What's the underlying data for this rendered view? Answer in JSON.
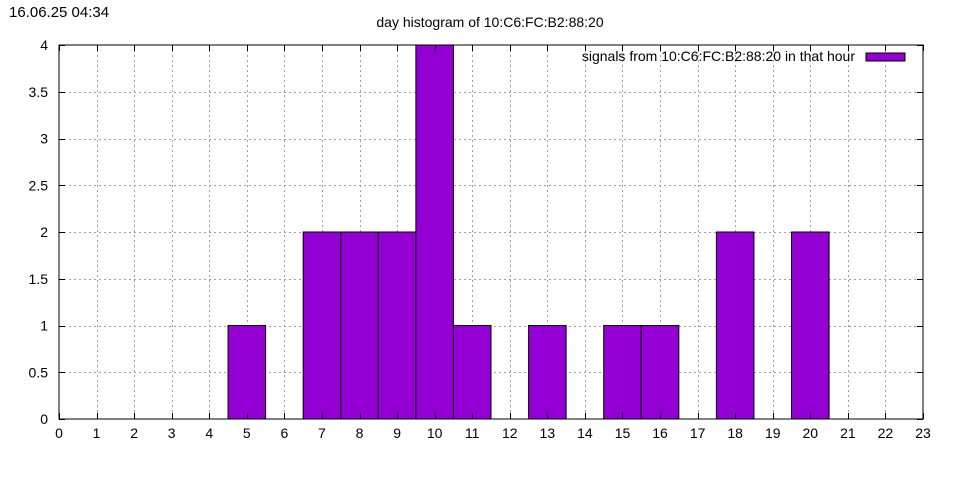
{
  "timestamp": "16.06.25 04:34",
  "chart_data": {
    "type": "bar",
    "title": "day histogram of 10:C6:FC:B2:88:20",
    "xlabel": "",
    "ylabel": "",
    "xlim": [
      0,
      23
    ],
    "ylim": [
      0,
      4
    ],
    "x_ticks": [
      "0",
      "1",
      "2",
      "3",
      "4",
      "5",
      "6",
      "7",
      "8",
      "9",
      "10",
      "11",
      "12",
      "13",
      "14",
      "15",
      "16",
      "17",
      "18",
      "19",
      "20",
      "21",
      "22",
      "23"
    ],
    "y_ticks": [
      "0",
      "0.5",
      "1",
      "1.5",
      "2",
      "2.5",
      "3",
      "3.5",
      "4"
    ],
    "grid": true,
    "legend_position": "top-right",
    "series": [
      {
        "name": "signals from 10:C6:FC:B2:88:20 in that hour",
        "color": "#9400D3",
        "x": [
          5,
          7,
          8,
          9,
          10,
          11,
          13,
          15,
          16,
          18,
          20
        ],
        "values": [
          1,
          2,
          2,
          2,
          4,
          1,
          1,
          1,
          1,
          2,
          2
        ]
      }
    ]
  }
}
